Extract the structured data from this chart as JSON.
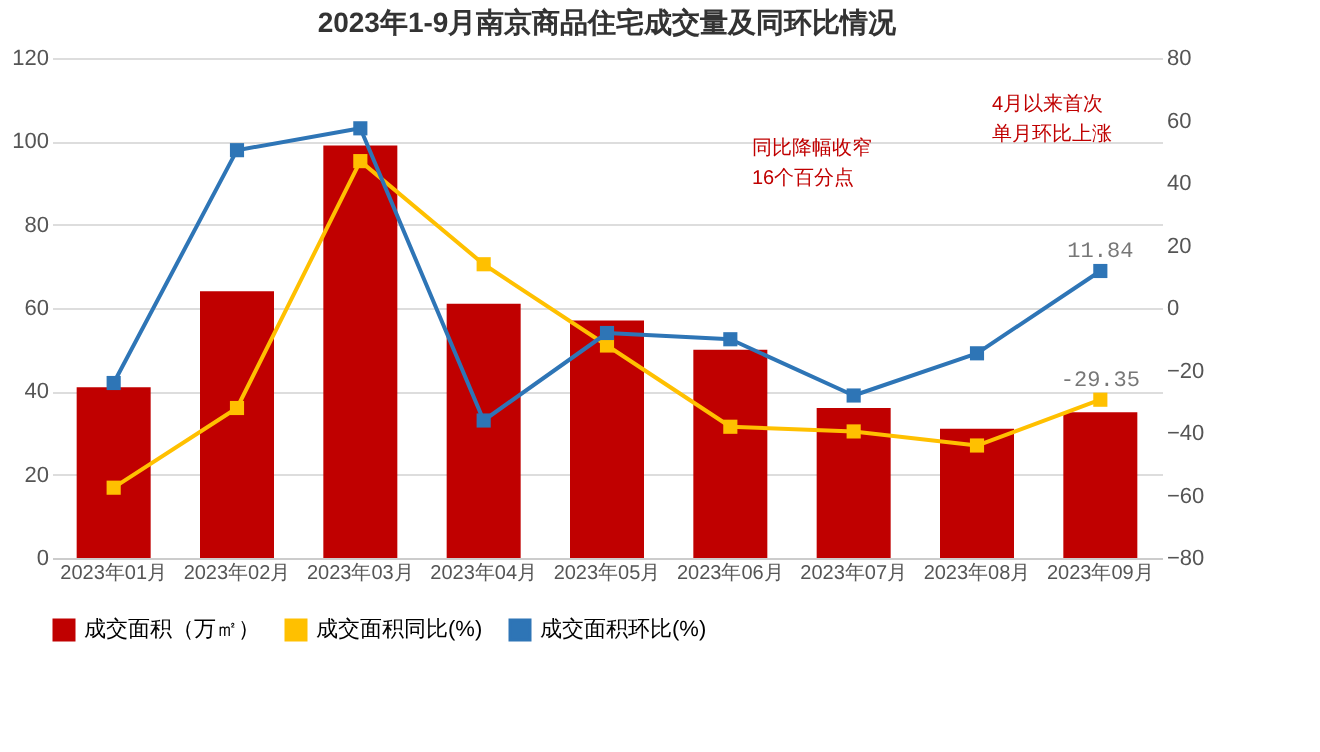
{
  "chart_data": {
    "type": "bar",
    "title": "2023年1-9月南京商品住宅成交量及同环比情况",
    "categories": [
      "2023年01月",
      "2023年02月",
      "2023年03月",
      "2023年04月",
      "2023年05月",
      "2023年06月",
      "2023年07月",
      "2023年08月",
      "2023年09月"
    ],
    "series": [
      {
        "name": "成交面积（万㎡）",
        "color": "#c00000",
        "values": [
          41,
          64,
          99,
          61,
          57,
          50,
          36,
          31,
          35
        ]
      },
      {
        "name": "成交面积同比(%)",
        "type": "line",
        "axis": "y2",
        "color": "#ffc000",
        "values": [
          -57.5,
          -32,
          47,
          14,
          -12,
          -38,
          -39.5,
          -44,
          -29.35
        ],
        "value_labels": [
          null,
          null,
          null,
          null,
          null,
          null,
          null,
          null,
          "-29.35"
        ]
      },
      {
        "name": "成交面积环比(%)",
        "type": "line",
        "axis": "y2",
        "color": "#2e75b6",
        "values": [
          -24,
          50.5,
          57.5,
          -36,
          -8,
          -10,
          -28,
          -14.5,
          11.84
        ],
        "value_labels": [
          null,
          null,
          null,
          null,
          null,
          null,
          null,
          null,
          "11.84"
        ]
      }
    ],
    "ylim": [
      0,
      120
    ],
    "yticks": [
      0,
      20,
      40,
      60,
      80,
      100,
      120
    ],
    "y2lim": [
      -80,
      80
    ],
    "y2ticks": [
      -80,
      -60,
      -40,
      -20,
      0,
      20,
      40,
      60,
      80
    ],
    "grid": "y",
    "legend": "bottom",
    "marker": "square",
    "annotations": [
      "4月以来首次单月环比上涨",
      "同比降幅收窄16个百分点"
    ]
  }
}
